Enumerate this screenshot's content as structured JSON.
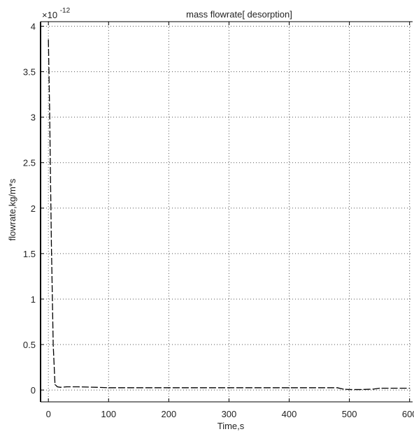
{
  "chart_data": {
    "type": "line",
    "title": "mass flowrate[ desorption]",
    "xlabel": "Time,s",
    "ylabel": "flowrate,kg/m*s",
    "y_exponent_base": "×10",
    "y_exponent_power": "-12",
    "xlim": [
      -13,
      605
    ],
    "ylim": [
      -0.13,
      4.05
    ],
    "grid": true,
    "xticks": [
      0,
      100,
      200,
      300,
      400,
      500,
      600
    ],
    "xtick_labels": [
      "0",
      "100",
      "200",
      "300",
      "400",
      "500",
      "600"
    ],
    "yticks": [
      0,
      0.5,
      1,
      1.5,
      2,
      2.5,
      3,
      3.5,
      4
    ],
    "ytick_labels": [
      "0",
      "0.5",
      "1",
      "1.5",
      "2",
      "2.5",
      "3",
      "3.5",
      "4"
    ],
    "series": [
      {
        "color": "#000000",
        "x": [
          0,
          2,
          5,
          8,
          11,
          15,
          20,
          30,
          50,
          80,
          100,
          200,
          300,
          400,
          480,
          490,
          500,
          520,
          540,
          550,
          600
        ],
        "y": [
          3.85,
          3.1,
          1.6,
          0.5,
          0.06,
          0.035,
          0.03,
          0.035,
          0.035,
          0.03,
          0.025,
          0.025,
          0.025,
          0.025,
          0.025,
          0.01,
          0.005,
          0.005,
          0.01,
          0.02,
          0.02
        ]
      }
    ]
  }
}
